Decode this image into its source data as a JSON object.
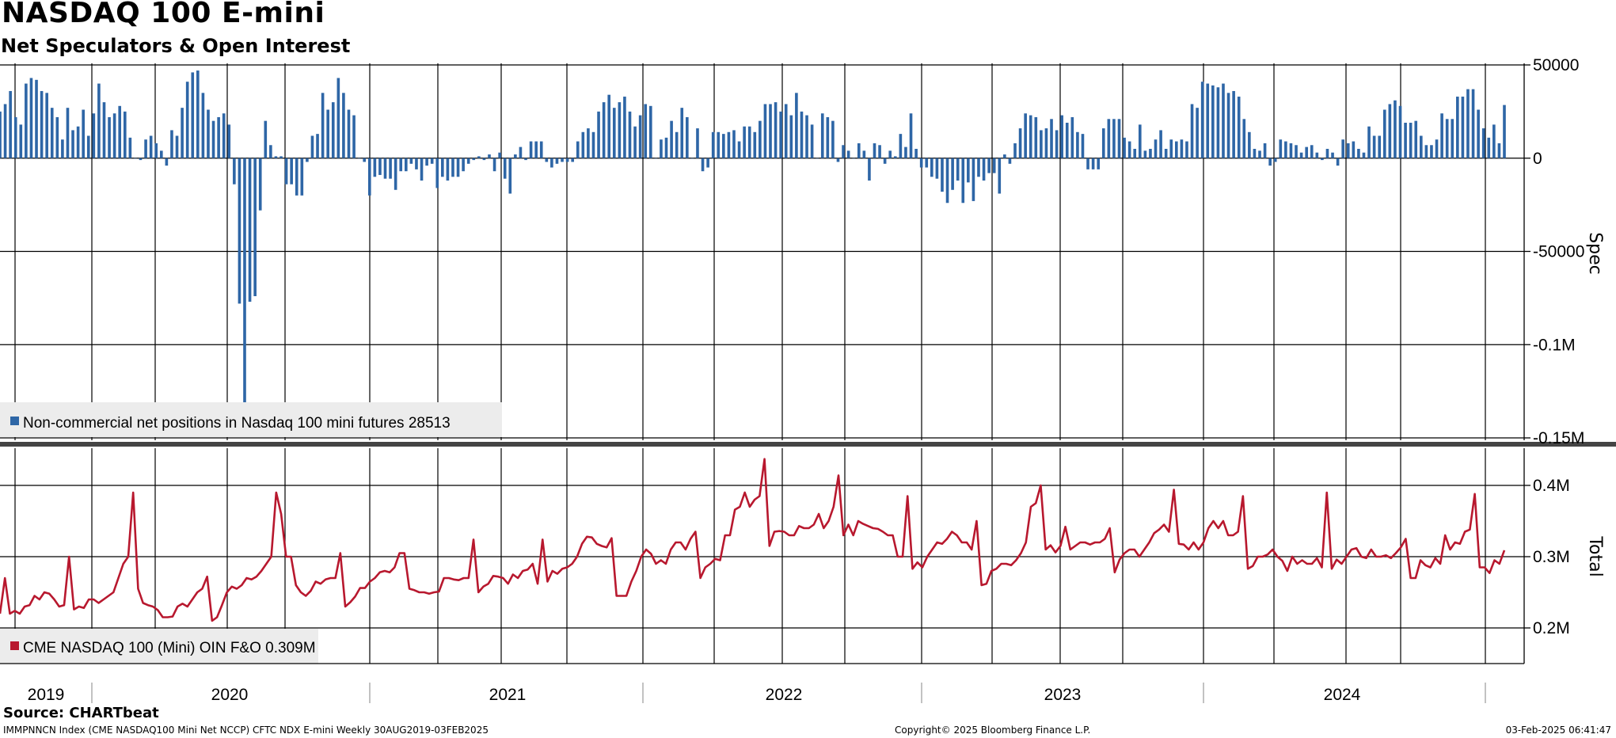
{
  "chart_data": {
    "title": "NASDAQ 100 E-mini",
    "subtitle": "Net Speculators & Open Interest",
    "source": "Source: CHARTbeat",
    "footer": {
      "left": "IMMPNNCN Index (CME NASDAQ100 Mini Net NCCP) CFTC NDX E-mini  Weekly 30AUG2019-03FEB2025",
      "center": "Copyright© 2025 Bloomberg Finance L.P.",
      "right": "03-Feb-2025 06:41:47"
    },
    "colors": {
      "spec": "#2e66a6",
      "total": "#b8182e",
      "grid": "#000000"
    },
    "x_labels": [
      "2019",
      "2020",
      "2021",
      "2022",
      "2023",
      "2024"
    ],
    "panels": [
      {
        "type": "bar",
        "axis_title": "Spec",
        "legend": "Non-commercial net positions in Nasdaq 100 mini futures 28513",
        "ylim": [
          -150000,
          50000
        ],
        "tick_values": [
          50000,
          0,
          -50000,
          -100000,
          -150000
        ],
        "tick_labels": [
          "50000",
          "0",
          "-50000",
          "-0.1M",
          "-0.15M"
        ],
        "values": [
          25000,
          29000,
          36000,
          22000,
          18000,
          40000,
          43000,
          42000,
          36000,
          35000,
          27000,
          22000,
          10000,
          27000,
          15000,
          17000,
          26000,
          12000,
          24000,
          40000,
          30000,
          22000,
          24000,
          28000,
          25000,
          11000,
          0,
          -1000,
          10000,
          12000,
          8000,
          4000,
          -4000,
          15000,
          12000,
          27000,
          41000,
          46000,
          47000,
          35000,
          26000,
          20000,
          22000,
          24000,
          18000,
          -14000,
          -78000,
          -131000,
          -77000,
          -74000,
          -28000,
          20000,
          7000,
          1000,
          1000,
          -14000,
          -14000,
          -20000,
          -20000,
          -2000,
          12000,
          13000,
          35000,
          26000,
          30000,
          43000,
          35000,
          26000,
          23000,
          0,
          -2000,
          -20000,
          -10000,
          -9000,
          -11000,
          -11000,
          -17000,
          -7000,
          -7000,
          -3000,
          -6000,
          -12000,
          -4000,
          -3000,
          -16000,
          -10000,
          -12000,
          -10000,
          -10000,
          -7000,
          -3000,
          -1000,
          1000,
          -1000,
          2000,
          -7000,
          3000,
          -11000,
          -19000,
          2000,
          6000,
          -1000,
          9000,
          9000,
          9000,
          -2000,
          -5000,
          -3000,
          -2000,
          -2000,
          -2000,
          9000,
          14000,
          16000,
          14000,
          25000,
          30000,
          34000,
          27000,
          30000,
          33000,
          25000,
          17000,
          23000,
          29000,
          28000,
          0,
          10000,
          11000,
          20000,
          14000,
          27000,
          22000,
          0,
          16000,
          -7000,
          -5000,
          14000,
          14000,
          13000,
          14000,
          15000,
          9000,
          17000,
          17000,
          14000,
          20000,
          29000,
          29000,
          30000,
          25000,
          29000,
          23000,
          35000,
          25000,
          23000,
          18000,
          0,
          24000,
          22000,
          20000,
          -2000,
          7000,
          4000,
          0,
          8000,
          4000,
          -12000,
          8000,
          7000,
          -3000,
          4000,
          1000,
          13000,
          6000,
          24000,
          5000,
          -5000,
          -5000,
          -10000,
          -11000,
          -18000,
          -24000,
          -17000,
          -12000,
          -24000,
          -13000,
          -23000,
          -10000,
          -12000,
          -8000,
          -8000,
          -19000,
          2000,
          -3000,
          8000,
          16000,
          24000,
          23000,
          22000,
          15000,
          16000,
          21000,
          15000,
          23000,
          19000,
          22000,
          14000,
          13000,
          -6000,
          -6000,
          -6000,
          16000,
          21000,
          21000,
          21000,
          11000,
          9000,
          5000,
          18000,
          4000,
          5000,
          10000,
          15000,
          5000,
          10000,
          9000,
          10000,
          9000,
          29000,
          27000,
          41000,
          40000,
          39000,
          38000,
          40000,
          35000,
          36000,
          33000,
          21000,
          14000,
          5000,
          4000,
          8000,
          -4000,
          -2000,
          10000,
          9000,
          8000,
          7000,
          3000,
          6000,
          7000,
          3000,
          -1000,
          5000,
          3000,
          -4000,
          10000,
          8000,
          9000,
          5000,
          3000,
          17000,
          12000,
          12000,
          26000,
          29000,
          31000,
          28000,
          19000,
          19000,
          20000,
          12000,
          7000,
          7000,
          10000,
          24000,
          21000,
          21000,
          33000,
          33000,
          37000,
          37000,
          26000,
          16000,
          11000,
          18000,
          8000,
          28513
        ]
      },
      {
        "type": "line",
        "axis_title": "Total",
        "legend": "CME NASDAQ 100 (Mini) OIN F&O 0.309M",
        "ylim": [
          0.15,
          0.45
        ],
        "tick_values": [
          0.4,
          0.3,
          0.2
        ],
        "tick_labels": [
          "0.4M",
          "0.3M",
          "0.2M"
        ],
        "values": [
          0.22,
          0.27,
          0.22,
          0.224,
          0.22,
          0.23,
          0.232,
          0.245,
          0.24,
          0.25,
          0.248,
          0.24,
          0.23,
          0.232,
          0.3,
          0.226,
          0.23,
          0.228,
          0.24,
          0.24,
          0.235,
          0.24,
          0.245,
          0.25,
          0.27,
          0.29,
          0.3,
          0.39,
          0.255,
          0.235,
          0.232,
          0.23,
          0.225,
          0.215,
          0.215,
          0.216,
          0.23,
          0.234,
          0.23,
          0.24,
          0.25,
          0.255,
          0.272,
          0.21,
          0.215,
          0.232,
          0.25,
          0.258,
          0.255,
          0.26,
          0.27,
          0.268,
          0.272,
          0.28,
          0.29,
          0.3,
          0.39,
          0.36,
          0.3,
          0.3,
          0.26,
          0.25,
          0.245,
          0.252,
          0.265,
          0.262,
          0.268,
          0.27,
          0.27,
          0.305,
          0.23,
          0.236,
          0.244,
          0.256,
          0.256,
          0.265,
          0.27,
          0.278,
          0.28,
          0.278,
          0.285,
          0.305,
          0.305,
          0.255,
          0.253,
          0.25,
          0.25,
          0.248,
          0.25,
          0.251,
          0.27,
          0.27,
          0.268,
          0.267,
          0.27,
          0.27,
          0.324,
          0.25,
          0.258,
          0.262,
          0.273,
          0.272,
          0.27,
          0.262,
          0.275,
          0.27,
          0.28,
          0.282,
          0.29,
          0.262,
          0.324,
          0.265,
          0.28,
          0.276,
          0.283,
          0.285,
          0.29,
          0.3,
          0.318,
          0.328,
          0.327,
          0.318,
          0.315,
          0.313,
          0.326,
          0.245,
          0.245,
          0.245,
          0.265,
          0.28,
          0.3,
          0.31,
          0.304,
          0.29,
          0.295,
          0.29,
          0.31,
          0.32,
          0.32,
          0.31,
          0.325,
          0.335,
          0.27,
          0.285,
          0.29,
          0.297,
          0.295,
          0.33,
          0.33,
          0.366,
          0.37,
          0.39,
          0.37,
          0.38,
          0.385,
          0.437,
          0.315,
          0.335,
          0.336,
          0.335,
          0.33,
          0.33,
          0.343,
          0.34,
          0.34,
          0.345,
          0.36,
          0.34,
          0.35,
          0.37,
          0.414,
          0.33,
          0.345,
          0.33,
          0.35,
          0.346,
          0.343,
          0.34,
          0.339,
          0.335,
          0.33,
          0.33,
          0.3,
          0.3,
          0.385,
          0.283,
          0.292,
          0.285,
          0.3,
          0.31,
          0.32,
          0.318,
          0.325,
          0.335,
          0.33,
          0.32,
          0.32,
          0.31,
          0.35,
          0.26,
          0.262,
          0.28,
          0.283,
          0.29,
          0.29,
          0.288,
          0.295,
          0.305,
          0.32,
          0.37,
          0.375,
          0.4,
          0.31,
          0.316,
          0.306,
          0.315,
          0.342,
          0.31,
          0.315,
          0.32,
          0.32,
          0.317,
          0.32,
          0.32,
          0.325,
          0.34,
          0.278,
          0.296,
          0.305,
          0.31,
          0.31,
          0.3,
          0.31,
          0.32,
          0.333,
          0.338,
          0.345,
          0.335,
          0.394,
          0.318,
          0.317,
          0.31,
          0.32,
          0.31,
          0.32,
          0.34,
          0.35,
          0.34,
          0.35,
          0.33,
          0.33,
          0.335,
          0.385,
          0.283,
          0.287,
          0.3,
          0.3,
          0.303,
          0.31,
          0.3,
          0.294,
          0.28,
          0.3,
          0.29,
          0.295,
          0.29,
          0.29,
          0.298,
          0.285,
          0.39,
          0.283,
          0.296,
          0.29,
          0.3,
          0.31,
          0.312,
          0.3,
          0.298,
          0.31,
          0.3,
          0.3,
          0.302,
          0.298,
          0.305,
          0.313,
          0.325,
          0.27,
          0.27,
          0.295,
          0.288,
          0.285,
          0.298,
          0.29,
          0.33,
          0.31,
          0.32,
          0.318,
          0.335,
          0.338,
          0.388,
          0.285,
          0.285,
          0.277,
          0.295,
          0.29,
          0.309
        ]
      }
    ]
  }
}
